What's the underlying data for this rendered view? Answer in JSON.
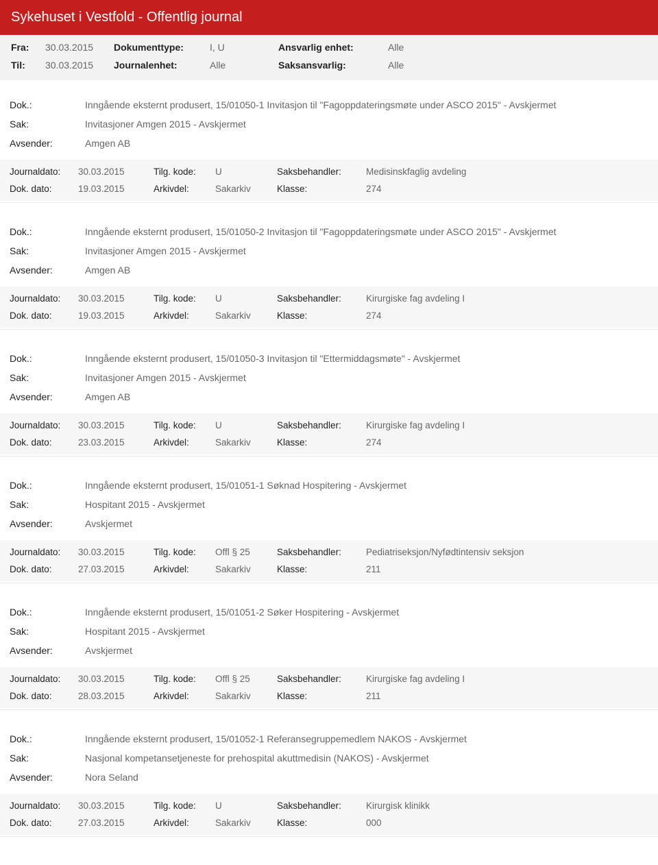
{
  "header": {
    "title": "Sykehuset i Vestfold - Offentlig journal"
  },
  "filters": {
    "fra_label": "Fra:",
    "fra_value": "30.03.2015",
    "til_label": "Til:",
    "til_value": "30.03.2015",
    "doktype_label": "Dokumenttype:",
    "doktype_value": "I, U",
    "journalenhet_label": "Journalenhet:",
    "journalenhet_value": "Alle",
    "ansvarlig_label": "Ansvarlig enhet:",
    "ansvarlig_value": "Alle",
    "saksansvarlig_label": "Saksansvarlig:",
    "saksansvarlig_value": "Alle"
  },
  "labels": {
    "dok": "Dok.:",
    "sak": "Sak:",
    "avsender": "Avsender:",
    "journaldato": "Journaldato:",
    "tilg": "Tilg. kode:",
    "saksbehandler": "Saksbehandler:",
    "dokdato": "Dok. dato:",
    "arkivdel": "Arkivdel:",
    "klasse": "Klasse:"
  },
  "entries": [
    {
      "dok": "Inngående eksternt produsert, 15/01050-1 Invitasjon til \"Fagoppdateringsmøte under ASCO 2015\" - Avskjermet",
      "sak": "Invitasjoner Amgen 2015 - Avskjermet",
      "avsender": "Amgen AB",
      "journaldato": "30.03.2015",
      "tilg": "U",
      "saksbehandler": "Medisinskfaglig avdeling",
      "dokdato": "19.03.2015",
      "arkivdel": "Sakarkiv",
      "klasse": "274"
    },
    {
      "dok": "Inngående eksternt produsert, 15/01050-2 Invitasjon til \"Fagoppdateringsmøte under ASCO 2015\" - Avskjermet",
      "sak": "Invitasjoner Amgen 2015 - Avskjermet",
      "avsender": "Amgen AB",
      "journaldato": "30.03.2015",
      "tilg": "U",
      "saksbehandler": "Kirurgiske fag avdeling I",
      "dokdato": "19.03.2015",
      "arkivdel": "Sakarkiv",
      "klasse": "274"
    },
    {
      "dok": "Inngående eksternt produsert, 15/01050-3 Invitasjon til \"Ettermiddagsmøte\" - Avskjermet",
      "sak": "Invitasjoner Amgen 2015 - Avskjermet",
      "avsender": "Amgen AB",
      "journaldato": "30.03.2015",
      "tilg": "U",
      "saksbehandler": "Kirurgiske fag avdeling I",
      "dokdato": "23.03.2015",
      "arkivdel": "Sakarkiv",
      "klasse": "274"
    },
    {
      "dok": "Inngående eksternt produsert, 15/01051-1 Søknad Hospitering - Avskjermet",
      "sak": "Hospitant 2015 - Avskjermet",
      "avsender": "Avskjermet",
      "journaldato": "30.03.2015",
      "tilg": "Offl § 25",
      "saksbehandler": "Pediatriseksjon/Nyfødtintensiv seksjon",
      "dokdato": "27.03.2015",
      "arkivdel": "Sakarkiv",
      "klasse": "211"
    },
    {
      "dok": "Inngående eksternt produsert, 15/01051-2 Søker Hospitering - Avskjermet",
      "sak": "Hospitant 2015 - Avskjermet",
      "avsender": "Avskjermet",
      "journaldato": "30.03.2015",
      "tilg": "Offl § 25",
      "saksbehandler": "Kirurgiske fag avdeling I",
      "dokdato": "28.03.2015",
      "arkivdel": "Sakarkiv",
      "klasse": "211"
    },
    {
      "dok": "Inngående eksternt produsert, 15/01052-1 Referansegruppemedlem NAKOS - Avskjermet",
      "sak": "Nasjonal kompetansetjeneste for prehospital akuttmedisin (NAKOS) - Avskjermet",
      "avsender": "Nora Seland",
      "journaldato": "30.03.2015",
      "tilg": "U",
      "saksbehandler": "Kirurgisk klinikk",
      "dokdato": "27.03.2015",
      "arkivdel": "Sakarkiv",
      "klasse": "000"
    }
  ]
}
